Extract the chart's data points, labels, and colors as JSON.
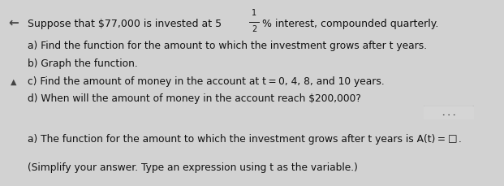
{
  "top_bg": "#d2d2d2",
  "bottom_bg": "#d8d8d8",
  "left_panel_bg": "#e0e0e0",
  "top_stripe_color": "#7799cc",
  "divider_color": "#aaaaaa",
  "text_color": "#111111",
  "answer_text_color": "#111111",
  "answer_line2_color": "#111111",
  "left_arrow_symbol": "✕",
  "triangle_symbol": "▲",
  "title_part1": "Suppose that $77,000 is invested at 5",
  "title_frac_num": "1",
  "title_frac_den": "2",
  "title_part2": "% interest, compounded quarterly.",
  "items": [
    "a) Find the function for the amount to which the investment grows after t years.",
    "b) Graph the function.",
    "c) Find the amount of money in the account at t = 0, 4, 8, and 10 years.",
    "d) When will the amount of money in the account reach $200,000?"
  ],
  "answer_line1_pre": "a) The function for the amount to which the investment grows after t years is A(t) = ",
  "answer_line1_box": "□",
  "answer_line1_post": ".",
  "answer_line2": "(Simplify your answer. Type an expression using t as the variable.)",
  "font_size_title": 9.0,
  "font_size_items": 8.8,
  "font_size_answer": 8.8,
  "dots_label": ". . ."
}
